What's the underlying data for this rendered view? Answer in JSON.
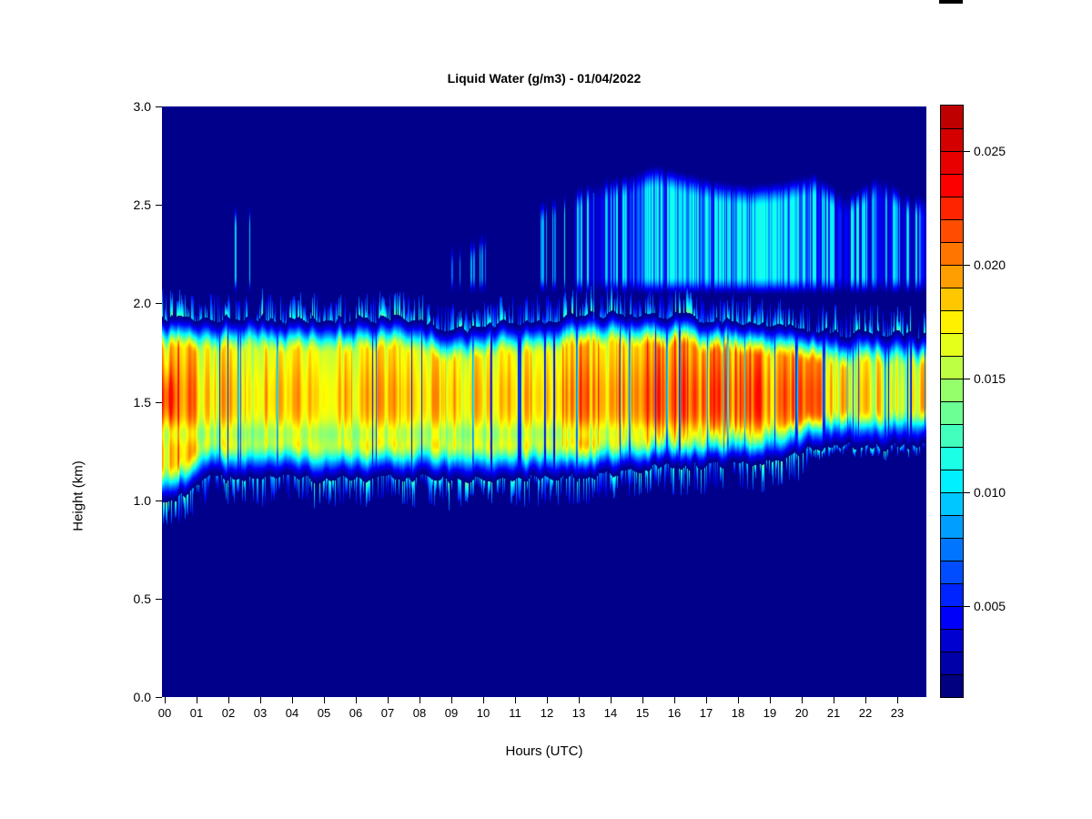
{
  "chart_data": {
    "type": "heatmap",
    "title": "Liquid Water (g/m3) - 01/04/2022",
    "xlabel": "Hours (UTC)",
    "ylabel": "Height (km)",
    "x_ticks": [
      "00",
      "01",
      "02",
      "03",
      "04",
      "05",
      "06",
      "07",
      "08",
      "09",
      "10",
      "11",
      "12",
      "13",
      "14",
      "15",
      "16",
      "17",
      "18",
      "19",
      "20",
      "21",
      "22",
      "23"
    ],
    "x_tick_values": [
      0,
      1,
      2,
      3,
      4,
      5,
      6,
      7,
      8,
      9,
      10,
      11,
      12,
      13,
      14,
      15,
      16,
      17,
      18,
      19,
      20,
      21,
      22,
      23
    ],
    "y_ticks": [
      "0.0",
      "0.5",
      "1.0",
      "1.5",
      "2.0",
      "2.5",
      "3.0"
    ],
    "y_tick_values": [
      0.0,
      0.5,
      1.0,
      1.5,
      2.0,
      2.5,
      3.0
    ],
    "x_range_hours": [
      0,
      24
    ],
    "y_range_km": [
      0,
      3
    ],
    "value_unit": "g/m3",
    "value_range": [
      0.001,
      0.027
    ],
    "grid": false,
    "colorbar": {
      "position": "right",
      "colormap": "jet",
      "n_blocks": 26,
      "tick_values": [
        0.005,
        0.01,
        0.015,
        0.02,
        0.025
      ],
      "tick_labels": [
        "0.005",
        "0.010",
        "0.015",
        "0.020",
        "0.025"
      ]
    },
    "background_value_gm3": 0.0003,
    "upper_cloud_base_km": 2.03,
    "surface_blob": {
      "hour_center": 0.18,
      "hour_sigma": 0.14,
      "height_center_km": 1.52,
      "height_sigma_km": 0.1,
      "extra_gm3": 0.0035
    },
    "hourly": {
      "hours": [
        0,
        1,
        2,
        3,
        4,
        5,
        6,
        7,
        8,
        9,
        10,
        11,
        12,
        13,
        14,
        15,
        16,
        17,
        18,
        19,
        20,
        21,
        22,
        23
      ],
      "band_core_gm3": [
        0.0168,
        0.0165,
        0.0168,
        0.0165,
        0.0165,
        0.0165,
        0.0165,
        0.0165,
        0.0168,
        0.016,
        0.0165,
        0.0165,
        0.0168,
        0.0178,
        0.0178,
        0.0188,
        0.0188,
        0.0185,
        0.018,
        0.0178,
        0.0172,
        0.0152,
        0.0152,
        0.0152
      ],
      "streak_max_gm3": [
        0.0215,
        0.018,
        0.0196,
        0.018,
        0.018,
        0.018,
        0.018,
        0.0182,
        0.0196,
        0.0172,
        0.018,
        0.018,
        0.019,
        0.022,
        0.022,
        0.0232,
        0.023,
        0.0226,
        0.022,
        0.0212,
        0.019,
        0.0172,
        0.0172,
        0.0172
      ],
      "streak_prob": [
        0.12,
        0.07,
        0.09,
        0.07,
        0.07,
        0.07,
        0.07,
        0.08,
        0.09,
        0.06,
        0.07,
        0.07,
        0.1,
        0.2,
        0.2,
        0.24,
        0.24,
        0.22,
        0.2,
        0.18,
        0.1,
        0.07,
        0.07,
        0.07
      ],
      "noise_amp": [
        0.3,
        0.3,
        0.3,
        0.3,
        0.3,
        0.3,
        0.3,
        0.3,
        0.3,
        0.3,
        0.3,
        0.3,
        0.3,
        0.35,
        0.35,
        0.35,
        0.35,
        0.35,
        0.35,
        0.35,
        0.4,
        0.52,
        0.52,
        0.52
      ],
      "band_bottom_km": [
        1.0,
        1.1,
        1.1,
        1.1,
        1.1,
        1.1,
        1.1,
        1.1,
        1.1,
        1.1,
        1.1,
        1.1,
        1.1,
        1.1,
        1.13,
        1.16,
        1.16,
        1.16,
        1.18,
        1.21,
        1.26,
        1.26,
        1.26,
        1.26
      ],
      "band_top_km": [
        1.93,
        1.93,
        1.94,
        1.93,
        1.92,
        1.93,
        1.93,
        1.93,
        1.9,
        1.87,
        1.91,
        1.93,
        1.93,
        1.95,
        1.96,
        1.96,
        1.94,
        1.93,
        1.91,
        1.9,
        1.88,
        1.86,
        1.86,
        1.85
      ],
      "upper_density": [
        0,
        0,
        0.07,
        0,
        0,
        0,
        0,
        0,
        0,
        0.05,
        0,
        0,
        0.1,
        0.28,
        0.33,
        0.55,
        0.75,
        0.72,
        0.85,
        0.85,
        0.5,
        0.3,
        0.35,
        0.28
      ],
      "upper_top_km": [
        2.5,
        2.5,
        2.5,
        2.5,
        2.5,
        2.5,
        2.5,
        2.5,
        2.3,
        2.3,
        2.4,
        2.5,
        2.55,
        2.62,
        2.65,
        2.7,
        2.66,
        2.62,
        2.6,
        2.62,
        2.66,
        2.55,
        2.65,
        2.55
      ]
    }
  }
}
